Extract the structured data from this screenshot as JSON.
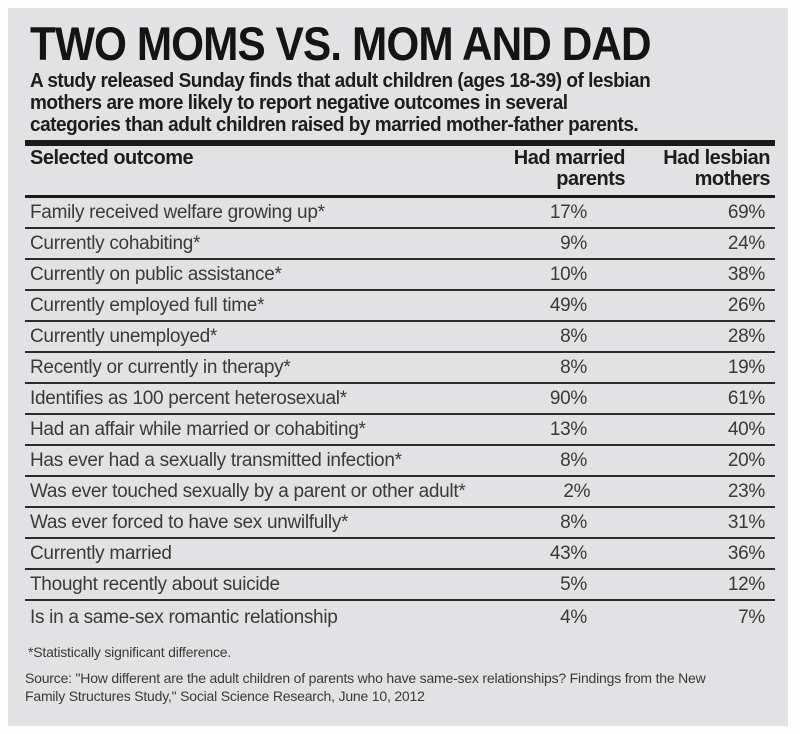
{
  "header": {
    "title": "TWO MOMS VS. MOM AND DAD",
    "subtitle_lines": [
      "A study released Sunday finds that adult children (ages 18-39) of lesbian",
      "mothers are more likely to report negative outcomes in several",
      "categories than adult children raised by married mother-father parents."
    ]
  },
  "table": {
    "header": {
      "col1": "Selected outcome",
      "col2": [
        "Had married",
        "parents"
      ],
      "col3": [
        "Had lesbian",
        "mothers"
      ]
    },
    "rows": [
      {
        "outcome": "Family received welfare growing up*",
        "married": "17%",
        "lesbian": "69%"
      },
      {
        "outcome": "Currently cohabiting*",
        "married": "9%",
        "lesbian": "24%"
      },
      {
        "outcome": "Currently on public assistance*",
        "married": "10%",
        "lesbian": "38%"
      },
      {
        "outcome": "Currently employed full time*",
        "married": "49%",
        "lesbian": "26%"
      },
      {
        "outcome": "Currently unemployed*",
        "married": "8%",
        "lesbian": "28%"
      },
      {
        "outcome": "Recently or currently in therapy*",
        "married": "8%",
        "lesbian": "19%"
      },
      {
        "outcome": "Identifies as 100 percent heterosexual*",
        "married": "90%",
        "lesbian": "61%"
      },
      {
        "outcome": "Had an affair while married or cohabiting*",
        "married": "13%",
        "lesbian": "40%"
      },
      {
        "outcome": "Has ever had a sexually transmitted infection*",
        "married": "8%",
        "lesbian": "20%"
      },
      {
        "outcome": "Was ever touched sexually by a parent or other adult*",
        "married": "2%",
        "lesbian": "23%"
      },
      {
        "outcome": "Was ever forced to have sex unwilfully*",
        "married": "8%",
        "lesbian": "31%"
      },
      {
        "outcome": "Currently married",
        "married": "43%",
        "lesbian": "36%"
      },
      {
        "outcome": "Thought recently about suicide",
        "married": "5%",
        "lesbian": "12%"
      },
      {
        "outcome": "Is in a same-sex romantic relationship",
        "married": "4%",
        "lesbian": "7%"
      }
    ]
  },
  "footer": {
    "footnote": "*Statistically significant difference.",
    "source_lines": [
      "Source: \"How different are the adult children of parents who have same-sex relationships? Findings from the New",
      "Family Structures Study,\" Social Science Research, June 10, 2012"
    ]
  },
  "colors": {
    "panel_background": "#e2e2e4",
    "rule": "#1a1a1a",
    "text": "#3a3a3a",
    "heading_text": "#141414"
  },
  "chart_data": {
    "type": "table",
    "title": "TWO MOMS VS. MOM AND DAD",
    "subtitle": "A study released Sunday finds that adult children (ages 18-39) of lesbian mothers are more likely to report negative outcomes in several categories than adult children raised by married mother-father parents.",
    "unit": "%",
    "categories": [
      "Family received welfare growing up*",
      "Currently cohabiting*",
      "Currently on public assistance*",
      "Currently employed full time*",
      "Currently unemployed*",
      "Recently or currently in therapy*",
      "Identifies as 100 percent heterosexual*",
      "Had an affair while married or cohabiting*",
      "Has ever had a sexually transmitted infection*",
      "Was ever touched sexually by a parent or other adult*",
      "Was ever forced to have sex unwilfully*",
      "Currently married",
      "Thought recently about suicide",
      "Is in a same-sex romantic relationship"
    ],
    "series": [
      {
        "name": "Had married parents",
        "values": [
          17,
          9,
          10,
          49,
          8,
          8,
          90,
          13,
          8,
          2,
          8,
          43,
          5,
          4
        ]
      },
      {
        "name": "Had lesbian mothers",
        "values": [
          69,
          24,
          38,
          26,
          28,
          19,
          61,
          40,
          20,
          23,
          31,
          36,
          12,
          7
        ]
      }
    ],
    "footnote": "*Statistically significant difference.",
    "source": "\"How different are the adult children of parents who have same-sex relationships? Findings from the New Family Structures Study,\" Social Science Research, June 10, 2012"
  }
}
